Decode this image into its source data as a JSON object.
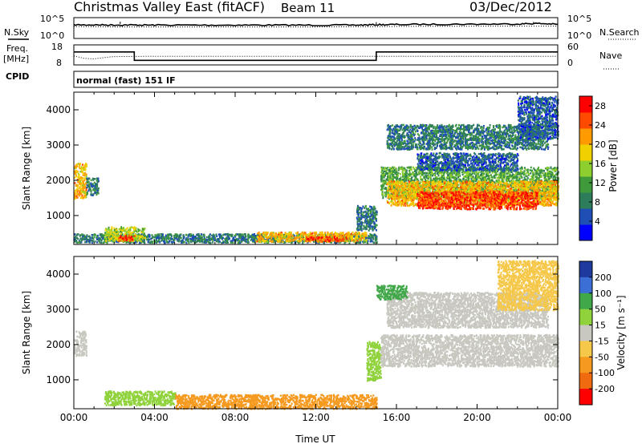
{
  "header": {
    "title": "Christmas Valley East (fitACF)",
    "beam": "Beam 11",
    "date": "03/Dec/2012"
  },
  "status_panels": {
    "nsky_label": "N.Sky",
    "nsearch_label": "N.Search",
    "noise_ticks": [
      "10^5",
      "10^0"
    ],
    "freq_label": "Freq.",
    "freq_unit": "[MHz]",
    "freq_ticks": [
      "18",
      "8"
    ],
    "nave_label": "Nave",
    "nave_ticks": [
      "60",
      "0"
    ],
    "cpid_label": "CPID",
    "cpid_value": "normal (fast) 151 IF"
  },
  "colors": {
    "power": [
      "#0000ff",
      "#1f4fb4",
      "#2e7d5a",
      "#3f9a3c",
      "#8ecf2f",
      "#f0d000",
      "#ff9b00",
      "#ff4a00",
      "#ff0000"
    ],
    "velocity": [
      "#1e3a9e",
      "#3b6fd6",
      "#41a84a",
      "#8fd23c",
      "#c8c8c0",
      "#f6c84a",
      "#f59a1f",
      "#f06a10",
      "#ff0000"
    ]
  },
  "chart_data": [
    {
      "type": "line",
      "title": "",
      "ylabel": "N.Sky",
      "ylim": [
        1,
        100000
      ],
      "log": true,
      "series": [
        {
          "name": "N.Sky",
          "style": "solid",
          "x": [
            0,
            1,
            2,
            3,
            4,
            6,
            8,
            10,
            12,
            14,
            15,
            16,
            18,
            20,
            22,
            23,
            24
          ],
          "values": [
            1800,
            1800,
            1700,
            1700,
            1600,
            1600,
            1600,
            1600,
            1600,
            1600,
            2000,
            2200,
            2500,
            2700,
            3000,
            4000,
            2500
          ]
        },
        {
          "name": "N.Search",
          "style": "dotted",
          "x": [
            0,
            2,
            4,
            8,
            12,
            15,
            16,
            20,
            24
          ],
          "values": [
            700,
            600,
            600,
            600,
            600,
            700,
            800,
            900,
            900
          ]
        }
      ]
    },
    {
      "type": "line",
      "ylabel": "Freq. [MHz]",
      "ylim": [
        8,
        18
      ],
      "series": [
        {
          "name": "Freq.",
          "style": "solid",
          "x": [
            0,
            2.999,
            3.0,
            14.999,
            15.0,
            24
          ],
          "values": [
            14.5,
            14.5,
            10.3,
            10.3,
            14.5,
            14.5
          ]
        },
        {
          "name": "Nave",
          "style": "dotted",
          "x": [
            0,
            0.5,
            1.0,
            1.5,
            2,
            4,
            8,
            12,
            16,
            20,
            24
          ],
          "values": [
            27,
            20,
            18,
            22,
            25,
            26,
            26,
            26,
            26,
            26,
            26
          ],
          "ylim": [
            0,
            60
          ]
        }
      ]
    },
    {
      "type": "heatmap",
      "xlabel": "",
      "ylabel": "Slant Range [km]",
      "xlim": [
        0,
        24
      ],
      "ylim": [
        180,
        4500
      ],
      "yticks": [
        1000,
        2000,
        3000,
        4000
      ],
      "colorbar": {
        "label": "Power [dB]",
        "ticks": [
          4,
          8,
          12,
          16,
          20,
          24,
          28
        ],
        "range": [
          0,
          30
        ]
      },
      "regions": [
        {
          "t": [
            0,
            0.6
          ],
          "r": [
            1500,
            2500
          ],
          "value": 20
        },
        {
          "t": [
            0.6,
            1.2
          ],
          "r": [
            1600,
            2100
          ],
          "value": 8
        },
        {
          "t": [
            0,
            15
          ],
          "r": [
            250,
            500
          ],
          "value": 8
        },
        {
          "t": [
            1.5,
            3.5
          ],
          "r": [
            300,
            700
          ],
          "value": 16
        },
        {
          "t": [
            2.2,
            3.0
          ],
          "r": [
            300,
            450
          ],
          "value": 26
        },
        {
          "t": [
            9,
            14.5
          ],
          "r": [
            280,
            550
          ],
          "value": 20
        },
        {
          "t": [
            11.5,
            13.5
          ],
          "r": [
            300,
            420
          ],
          "value": 26
        },
        {
          "t": [
            14,
            15
          ],
          "r": [
            600,
            1300
          ],
          "value": 8
        },
        {
          "t": [
            15.2,
            24
          ],
          "r": [
            1500,
            2400
          ],
          "value": 12
        },
        {
          "t": [
            15.5,
            24
          ],
          "r": [
            1300,
            2000
          ],
          "value": 20
        },
        {
          "t": [
            17,
            23
          ],
          "r": [
            1200,
            1700
          ],
          "value": 26
        },
        {
          "t": [
            15.5,
            23.5
          ],
          "r": [
            2900,
            3600
          ],
          "value": 8
        },
        {
          "t": [
            17,
            22
          ],
          "r": [
            2300,
            2800
          ],
          "value": 6
        },
        {
          "t": [
            22,
            24
          ],
          "r": [
            3200,
            4400
          ],
          "value": 6
        }
      ]
    },
    {
      "type": "heatmap",
      "xlabel": "Time UT",
      "ylabel": "Slant Range [km]",
      "xlim": [
        0,
        24
      ],
      "ylim": [
        180,
        4500
      ],
      "xticks": [
        "00:00",
        "04:00",
        "08:00",
        "12:00",
        "16:00",
        "20:00",
        "00:00"
      ],
      "yticks": [
        1000,
        2000,
        3000,
        4000
      ],
      "colorbar": {
        "label": "Velocity [m s⁻¹]",
        "ticks": [
          200,
          100,
          50,
          15,
          -15,
          -50,
          -100,
          -200
        ],
        "range": [
          -250,
          250
        ]
      },
      "regions": [
        {
          "t": [
            0,
            0.6
          ],
          "r": [
            1700,
            2400
          ],
          "value": 0
        },
        {
          "t": [
            1.5,
            5.0
          ],
          "r": [
            300,
            700
          ],
          "value": 30
        },
        {
          "t": [
            5,
            15
          ],
          "r": [
            200,
            600
          ],
          "value": -60
        },
        {
          "t": [
            14.5,
            15.2
          ],
          "r": [
            1000,
            2100
          ],
          "value": 30
        },
        {
          "t": [
            15.2,
            24
          ],
          "r": [
            1400,
            2300
          ],
          "value": 0
        },
        {
          "t": [
            15.5,
            23.5
          ],
          "r": [
            2500,
            3500
          ],
          "value": 0
        },
        {
          "t": [
            15,
            16.5
          ],
          "r": [
            3300,
            3700
          ],
          "value": 60
        },
        {
          "t": [
            21,
            24
          ],
          "r": [
            3000,
            4400
          ],
          "value": -20
        }
      ]
    }
  ]
}
